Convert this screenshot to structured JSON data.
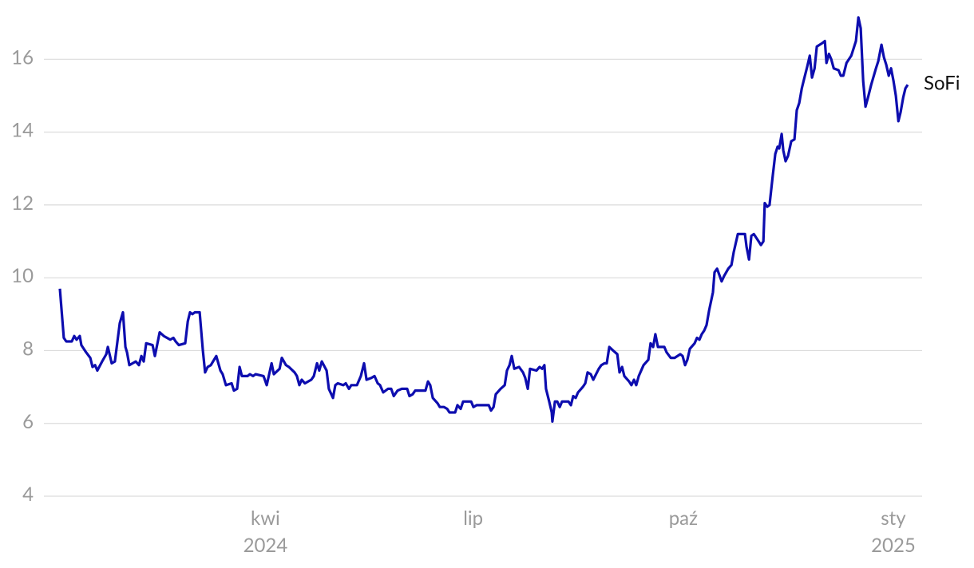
{
  "chart_data": {
    "type": "line",
    "x": [
      1.0,
      2.0,
      2.7,
      3.8,
      6.2,
      7.3,
      8.3,
      9.7,
      10.4,
      12.5,
      14.3,
      15.3,
      16.4,
      17.4,
      19.5,
      21.3,
      22.0,
      23.7,
      25.1,
      27.2,
      28.6,
      29.7,
      30.4,
      31.4,
      34.2,
      35.6,
      36.7,
      37.7,
      38.8,
      41.6,
      42.6,
      44.7,
      46.5,
      49.3,
      50.7,
      51.7,
      53.1,
      55.9,
      57.0,
      58.0,
      59.0,
      60.1,
      62.2,
      63.6,
      64.6,
      65.7,
      67.1,
      69.5,
      71.3,
      72.3,
      73.7,
      76.2,
      77.2,
      78.6,
      79.7,
      80.7,
      83.2,
      84.2,
      85.6,
      86.7,
      90.2,
      91.6,
      93.7,
      94.7,
      97.2,
      98.2,
      100.0,
      101.3,
      103.8,
      104.8,
      105.9,
      106.9,
      108.3,
      111.1,
      112.2,
      113.6,
      114.6,
      115.7,
      117.8,
      118.8,
      120.6,
      121.6,
      122.7,
      125.1,
      126.2,
      127.6,
      128.6,
      131.1,
      132.8,
      134.2,
      135.3,
      137.4,
      138.8,
      140.2,
      141.2,
      142.6,
      144.7,
      146.1,
      147.2,
      148.9,
      150.7,
      153.1,
      154.1,
      155.5,
      156.6,
      159.0,
      161.1,
      162.2,
      163.2,
      164.3,
      166.4,
      167.4,
      169.2,
      170.6,
      171.6,
      174.1,
      175.1,
      176.5,
      177.6,
      181.1,
      182.1,
      183.5,
      188.8,
      189.8,
      190.9,
      191.9,
      194.0,
      195.8,
      196.8,
      197.9,
      198.9,
      200.0,
      202.1,
      203.8,
      204.8,
      205.9,
      206.9,
      209.7,
      211.1,
      212.2,
      213.2,
      213.9,
      215.3,
      216.4,
      216.7,
      217.8,
      218.8,
      219.9,
      220.9,
      223.7,
      224.8,
      225.8,
      226.9,
      227.9,
      230.0,
      231.1,
      232.1,
      233.5,
      234.6,
      237.0,
      238.1,
      239.5,
      240.5,
      241.6,
      243.3,
      245.1,
      246.1,
      247.2,
      248.2,
      250.3,
      251.3,
      252.4,
      253.4,
      254.5,
      256.6,
      258.7,
      259.7,
      260.8,
      261.8,
      262.9,
      265.7,
      266.7,
      268.5,
      270.2,
      272.7,
      273.7,
      274.8,
      275.8,
      276.9,
      279.0,
      280.0,
      281.1,
      282.1,
      283.2,
      284.2,
      285.3,
      287.0,
      287.7,
      288.8,
      290.8,
      291.9,
      293.7,
      295.1,
      296.1,
      297.9,
      300.0,
      301.0,
      301.7,
      302.8,
      303.8,
      304.9,
      307.0,
      308.0,
      309.1,
      309.7,
      310.8,
      311.8,
      313.2,
      314.3,
      315.3,
      316.0,
      317.1,
      317.8,
      318.8,
      319.9,
      321.3,
      322.7,
      323.7,
      324.8,
      325.9,
      326.9,
      328.3,
      329.4,
      330.4,
      331.5,
      332.5,
      335.0,
      336.0,
      336.7,
      337.8,
      338.8,
      339.9,
      342.0,
      343.0,
      344.1,
      345.5,
      347.6,
      349.6,
      350.7,
      351.7,
      352.8,
      353.8,
      354.9,
      356.3,
      358.4,
      359.4,
      360.8,
      361.9,
      362.9,
      364.0,
      365.0,
      366.1,
      367.1,
      368.2,
      369.2,
      370.3,
      371.3,
      372.3
    ],
    "series": [
      {
        "name": "SoFi",
        "color": "#0d0daf",
        "values": [
          9.7,
          8.9,
          8.35,
          8.25,
          8.25,
          8.4,
          8.3,
          8.4,
          8.15,
          7.95,
          7.8,
          7.55,
          7.6,
          7.45,
          7.7,
          7.9,
          8.1,
          7.65,
          7.7,
          8.75,
          9.05,
          8.1,
          7.95,
          7.6,
          7.7,
          7.6,
          7.85,
          7.7,
          8.2,
          8.15,
          7.85,
          8.5,
          8.4,
          8.3,
          8.35,
          8.25,
          8.15,
          8.2,
          8.8,
          9.05,
          9.0,
          9.05,
          9.05,
          8.0,
          7.4,
          7.55,
          7.6,
          7.85,
          7.45,
          7.35,
          7.05,
          7.1,
          6.9,
          6.95,
          7.55,
          7.3,
          7.3,
          7.35,
          7.3,
          7.35,
          7.3,
          7.05,
          7.65,
          7.35,
          7.5,
          7.8,
          7.6,
          7.55,
          7.4,
          7.3,
          7.05,
          7.2,
          7.1,
          7.2,
          7.3,
          7.65,
          7.45,
          7.7,
          7.45,
          6.95,
          6.7,
          7.05,
          7.1,
          7.05,
          7.1,
          6.95,
          7.05,
          7.05,
          7.3,
          7.65,
          7.2,
          7.25,
          7.3,
          7.1,
          7.05,
          6.85,
          6.95,
          6.95,
          6.75,
          6.9,
          6.95,
          6.95,
          6.75,
          6.8,
          6.9,
          6.9,
          6.9,
          7.15,
          7.05,
          6.7,
          6.55,
          6.45,
          6.45,
          6.4,
          6.3,
          6.3,
          6.5,
          6.4,
          6.6,
          6.6,
          6.45,
          6.5,
          6.5,
          6.35,
          6.45,
          6.8,
          6.95,
          7.05,
          7.45,
          7.6,
          7.85,
          7.5,
          7.55,
          7.4,
          7.25,
          6.95,
          7.5,
          7.45,
          7.55,
          7.5,
          7.6,
          6.95,
          6.6,
          6.3,
          6.05,
          6.6,
          6.6,
          6.45,
          6.6,
          6.6,
          6.5,
          6.75,
          6.7,
          6.85,
          7.0,
          7.1,
          7.4,
          7.35,
          7.2,
          7.5,
          7.6,
          7.65,
          7.65,
          8.1,
          8.0,
          7.9,
          7.4,
          7.55,
          7.3,
          7.15,
          7.05,
          7.2,
          7.05,
          7.3,
          7.6,
          7.75,
          8.2,
          8.1,
          8.45,
          8.1,
          8.1,
          7.95,
          7.8,
          7.8,
          7.9,
          7.85,
          7.6,
          7.75,
          8.05,
          8.2,
          8.35,
          8.3,
          8.45,
          8.55,
          8.7,
          9.1,
          9.6,
          10.15,
          10.25,
          9.9,
          10.05,
          10.25,
          10.35,
          10.7,
          11.2,
          11.2,
          11.2,
          10.85,
          10.5,
          11.15,
          11.2,
          11.0,
          10.9,
          11.0,
          12.05,
          11.95,
          12.0,
          12.8,
          13.4,
          13.6,
          13.55,
          13.95,
          13.5,
          13.2,
          13.35,
          13.75,
          13.8,
          14.6,
          14.8,
          15.2,
          15.45,
          15.8,
          16.1,
          15.5,
          15.75,
          16.35,
          16.45,
          16.5,
          15.9,
          16.15,
          16.0,
          15.75,
          15.7,
          15.55,
          15.55,
          15.9,
          16.1,
          16.5,
          17.15,
          16.85,
          15.4,
          14.7,
          14.95,
          15.3,
          15.75,
          15.95,
          16.4,
          16.05,
          15.85,
          15.55,
          15.75,
          15.4,
          15.0,
          14.3,
          14.55,
          14.95,
          15.2,
          15.3
        ]
      }
    ],
    "xlim": [
      -6,
      378.6
    ],
    "xticks": [
      {
        "value": 91,
        "label": [
          "kwi",
          "2024"
        ]
      },
      {
        "value": 182,
        "label": [
          "lip"
        ]
      },
      {
        "value": 274,
        "label": [
          "paź"
        ]
      },
      {
        "value": 366,
        "label": [
          "sty",
          "2025"
        ]
      }
    ],
    "ylim": [
      4,
      17.3
    ],
    "yticks": [
      4,
      6,
      8,
      10,
      12,
      14,
      16
    ],
    "grid": true
  }
}
